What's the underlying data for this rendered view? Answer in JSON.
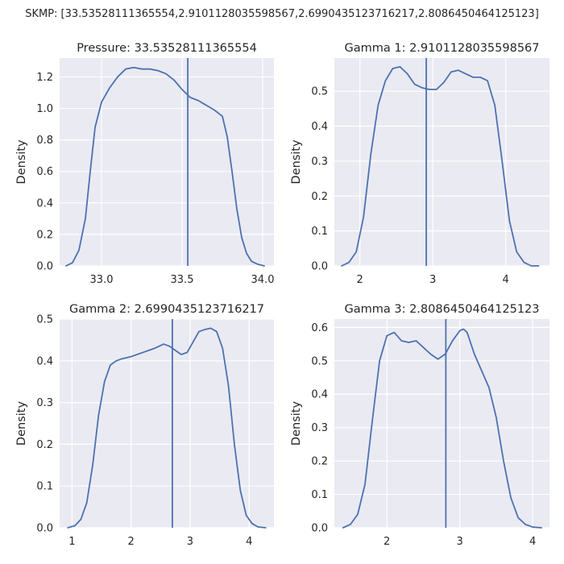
{
  "suptitle": "SKMP: [33.53528111365554,2.9101128035598567,2.6990435123716217,2.8086450464125123]",
  "colors": {
    "background": "#eaeaf2",
    "grid": "#ffffff",
    "line": "#4c72b0",
    "text": "#262626"
  },
  "chart_data": [
    {
      "type": "line",
      "title": "Pressure: 33.53528111365554",
      "xlabel": "",
      "ylabel": "Density",
      "xlim": [
        32.74,
        34.07
      ],
      "ylim": [
        0,
        1.32
      ],
      "xticks": [
        33.0,
        33.5,
        34.0
      ],
      "xtick_labels": [
        "33.0",
        "33.5",
        "34.0"
      ],
      "yticks": [
        0,
        0.2,
        0.4,
        0.6,
        0.8,
        1.0,
        1.2
      ],
      "ytick_labels": [
        "0.0",
        "0.2",
        "0.4",
        "0.6",
        "0.8",
        "1.0",
        "1.2"
      ],
      "grid": true,
      "vline": 33.53528111365554,
      "series": [
        {
          "x": [
            32.78,
            32.82,
            32.86,
            32.9,
            32.93,
            32.96,
            33.0,
            33.05,
            33.1,
            33.15,
            33.2,
            33.25,
            33.3,
            33.35,
            33.4,
            33.45,
            33.5,
            33.55,
            33.6,
            33.65,
            33.7,
            33.75,
            33.78,
            33.81,
            33.84,
            33.87,
            33.9,
            33.93,
            33.97,
            34.01
          ],
          "y": [
            0.0,
            0.02,
            0.1,
            0.3,
            0.6,
            0.88,
            1.04,
            1.13,
            1.2,
            1.25,
            1.26,
            1.25,
            1.25,
            1.24,
            1.22,
            1.18,
            1.12,
            1.07,
            1.05,
            1.02,
            0.99,
            0.95,
            0.82,
            0.6,
            0.36,
            0.18,
            0.08,
            0.03,
            0.01,
            0.0
          ]
        }
      ]
    },
    {
      "type": "line",
      "title": "Gamma 1: 2.9101128035598567",
      "xlabel": "",
      "ylabel": "Density",
      "xlim": [
        1.65,
        4.6
      ],
      "ylim": [
        0,
        0.595
      ],
      "xticks": [
        2,
        3,
        4
      ],
      "xtick_labels": [
        "2",
        "3",
        "4"
      ],
      "yticks": [
        0,
        0.1,
        0.2,
        0.3,
        0.4,
        0.5
      ],
      "ytick_labels": [
        "0.0",
        "0.1",
        "0.2",
        "0.3",
        "0.4",
        "0.5"
      ],
      "grid": true,
      "vline": 2.9101128035598567,
      "series": [
        {
          "x": [
            1.75,
            1.85,
            1.95,
            2.05,
            2.15,
            2.25,
            2.35,
            2.45,
            2.55,
            2.65,
            2.75,
            2.85,
            2.95,
            3.05,
            3.15,
            3.25,
            3.35,
            3.45,
            3.55,
            3.65,
            3.75,
            3.85,
            3.95,
            4.05,
            4.15,
            4.25,
            4.35,
            4.45
          ],
          "y": [
            0.0,
            0.01,
            0.04,
            0.14,
            0.32,
            0.46,
            0.53,
            0.565,
            0.57,
            0.55,
            0.52,
            0.51,
            0.505,
            0.505,
            0.525,
            0.555,
            0.56,
            0.55,
            0.54,
            0.54,
            0.53,
            0.46,
            0.3,
            0.13,
            0.04,
            0.01,
            0.0,
            0.0
          ]
        }
      ]
    },
    {
      "type": "line",
      "title": "Gamma 2: 2.6990435123716217",
      "xlabel": "",
      "ylabel": "Density",
      "xlim": [
        0.79,
        4.42
      ],
      "ylim": [
        0,
        0.5
      ],
      "xticks": [
        1,
        2,
        3,
        4
      ],
      "xtick_labels": [
        "1",
        "2",
        "3",
        "4"
      ],
      "yticks": [
        0,
        0.1,
        0.2,
        0.3,
        0.4,
        0.5
      ],
      "ytick_labels": [
        "0.0",
        "0.1",
        "0.2",
        "0.3",
        "0.4",
        "0.5"
      ],
      "grid": true,
      "vline": 2.6990435123716217,
      "series": [
        {
          "x": [
            0.93,
            1.05,
            1.15,
            1.25,
            1.35,
            1.45,
            1.55,
            1.65,
            1.75,
            1.85,
            2.0,
            2.2,
            2.4,
            2.55,
            2.65,
            2.75,
            2.85,
            2.95,
            3.05,
            3.15,
            3.25,
            3.35,
            3.45,
            3.55,
            3.65,
            3.75,
            3.85,
            3.95,
            4.05,
            4.15,
            4.28
          ],
          "y": [
            0.0,
            0.005,
            0.02,
            0.06,
            0.15,
            0.27,
            0.35,
            0.39,
            0.4,
            0.405,
            0.41,
            0.42,
            0.43,
            0.44,
            0.435,
            0.425,
            0.415,
            0.42,
            0.445,
            0.47,
            0.475,
            0.478,
            0.47,
            0.43,
            0.34,
            0.2,
            0.09,
            0.03,
            0.01,
            0.002,
            0.0
          ]
        }
      ]
    },
    {
      "type": "line",
      "title": "Gamma 3: 2.8086450464125123",
      "xlabel": "",
      "ylabel": "Density",
      "xlim": [
        1.28,
        4.23
      ],
      "ylim": [
        0,
        0.625
      ],
      "xticks": [
        2,
        3,
        4
      ],
      "xtick_labels": [
        "2",
        "3",
        "4"
      ],
      "yticks": [
        0,
        0.1,
        0.2,
        0.3,
        0.4,
        0.5,
        0.6
      ],
      "ytick_labels": [
        "0.0",
        "0.1",
        "0.2",
        "0.3",
        "0.4",
        "0.5",
        "0.6"
      ],
      "grid": true,
      "vline": 2.8086450464125123,
      "series": [
        {
          "x": [
            1.4,
            1.5,
            1.6,
            1.7,
            1.8,
            1.9,
            2.0,
            2.1,
            2.2,
            2.3,
            2.4,
            2.5,
            2.6,
            2.7,
            2.8,
            2.9,
            3.0,
            3.05,
            3.1,
            3.2,
            3.3,
            3.4,
            3.5,
            3.6,
            3.7,
            3.8,
            3.9,
            4.0,
            4.12
          ],
          "y": [
            0.0,
            0.01,
            0.04,
            0.13,
            0.32,
            0.5,
            0.575,
            0.585,
            0.56,
            0.555,
            0.56,
            0.54,
            0.52,
            0.505,
            0.52,
            0.56,
            0.59,
            0.595,
            0.585,
            0.52,
            0.47,
            0.42,
            0.33,
            0.2,
            0.09,
            0.03,
            0.01,
            0.002,
            0.0
          ]
        }
      ]
    }
  ]
}
